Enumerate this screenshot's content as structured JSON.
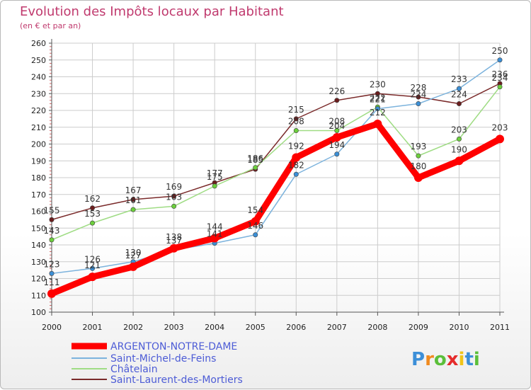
{
  "chart_data": {
    "type": "line",
    "title": "Evolution des Impôts locaux par Habitant",
    "subtitle": "(en € et par an)",
    "xlabel": "",
    "ylabel": "",
    "x": [
      "2000",
      "2001",
      "2002",
      "2003",
      "2004",
      "2005",
      "2006",
      "2007",
      "2008",
      "2009",
      "2010",
      "2011"
    ],
    "ylim": [
      100,
      260
    ],
    "yticks": [
      100,
      110,
      120,
      130,
      140,
      150,
      160,
      170,
      180,
      190,
      200,
      210,
      220,
      230,
      240,
      250,
      260
    ],
    "grid": true,
    "legend_position": "bottom-left",
    "series": [
      {
        "name": "Saint-Laurent-des-Mortiers",
        "color": "#7a2a2a",
        "marker_color": "#6b1d1d",
        "values": [
          155,
          162,
          167,
          169,
          177,
          185,
          215,
          226,
          230,
          228,
          224,
          236
        ],
        "labels": [
          "155",
          "162",
          "167",
          "169",
          "177",
          "185",
          "215",
          "226",
          "230",
          "228",
          "224",
          "236"
        ]
      },
      {
        "name": "Châtelain",
        "color": "#9fdc84",
        "marker_color": "#6ccf3c",
        "values": [
          143,
          153,
          161,
          163,
          175,
          186,
          208,
          208,
          222,
          193,
          203,
          234
        ],
        "labels": [
          "143",
          "153",
          "161",
          "163",
          "175",
          "186",
          "208",
          "208",
          "222",
          "193",
          "203",
          "234"
        ]
      },
      {
        "name": "Saint-Michel-de-Feins",
        "color": "#7cb3dd",
        "marker_color": "#3b8fd6",
        "values": [
          123,
          126,
          130,
          137,
          141,
          146,
          182,
          194,
          221,
          224,
          233,
          250
        ],
        "labels": [
          "123",
          "126",
          "130",
          "137",
          "141",
          "146",
          "182",
          "194",
          "221",
          "224",
          "233",
          "250"
        ]
      },
      {
        "name": "ARGENTON-NOTRE-DAME",
        "color": "#ff0000",
        "marker_color": "#ff0000",
        "values": [
          111,
          121,
          127,
          138,
          144,
          154,
          192,
          204,
          212,
          180,
          190,
          203
        ],
        "labels": [
          "111",
          "121",
          "127",
          "138",
          "144",
          "154",
          "192",
          "204",
          "212",
          "180",
          "190",
          "203"
        ]
      }
    ],
    "legend": [
      "ARGENTON-NOTRE-DAME",
      "Saint-Michel-de-Feins",
      "Châtelain",
      "Saint-Laurent-des-Mortiers"
    ]
  },
  "branding": {
    "logo_text": "Proxiti",
    "logo_letters": [
      "P",
      "r",
      "o",
      "x",
      "i",
      "t",
      "i"
    ],
    "logo_colors": [
      "#3c8fd8",
      "#f08a1e",
      "#5bbf3a",
      "#e52b2b",
      "#f0c419",
      "#3c8fd8",
      "#5bbf3a"
    ]
  }
}
